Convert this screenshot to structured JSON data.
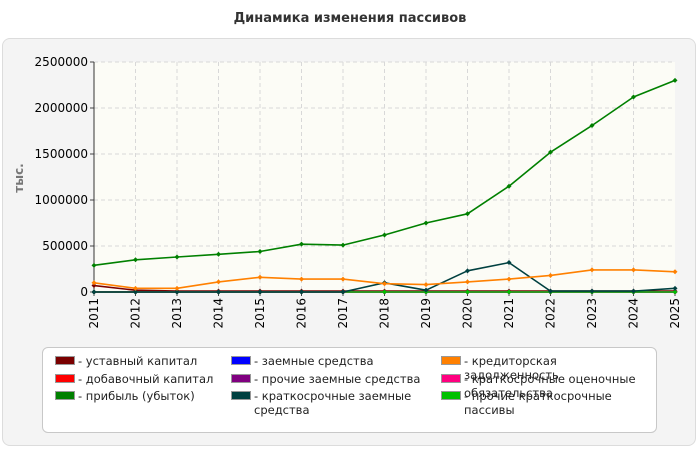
{
  "chart_data": {
    "type": "line",
    "title": "Динамика изменения пассивов",
    "ylabel": "тыс.",
    "ylim": [
      0,
      2500000
    ],
    "yticks": [
      "0",
      "500000",
      "1000000",
      "1500000",
      "2000000",
      "2500000"
    ],
    "x": [
      "2011",
      "2012",
      "2013",
      "2014",
      "2015",
      "2016",
      "2017",
      "2018",
      "2019",
      "2020",
      "2021",
      "2022",
      "2023",
      "2024",
      "2025"
    ],
    "grid": true,
    "legend_position": "bottom",
    "series": [
      {
        "name": "- уставный капитал",
        "color": "#7a0000",
        "values": [
          70000,
          20000,
          10000,
          10000,
          10000,
          10000,
          10000,
          10000,
          10000,
          10000,
          10000,
          10000,
          10000,
          10000,
          10000
        ]
      },
      {
        "name": "- добавочный капитал",
        "color": "#ff0000",
        "values": [
          0,
          0,
          0,
          0,
          0,
          0,
          0,
          0,
          0,
          0,
          0,
          0,
          0,
          0,
          0
        ]
      },
      {
        "name": "- прибыль (убыток)",
        "color": "#008000",
        "values": [
          290000,
          350000,
          380000,
          410000,
          440000,
          520000,
          510000,
          620000,
          750000,
          850000,
          1150000,
          1520000,
          1810000,
          2120000,
          2300000
        ]
      },
      {
        "name": "- заемные средства",
        "color": "#0000ff",
        "values": [
          0,
          0,
          0,
          0,
          0,
          0,
          0,
          0,
          0,
          0,
          0,
          0,
          0,
          0,
          0
        ]
      },
      {
        "name": "- прочие заемные средства",
        "color": "#800080",
        "values": [
          0,
          0,
          0,
          0,
          0,
          0,
          0,
          0,
          0,
          0,
          0,
          0,
          0,
          0,
          0
        ]
      },
      {
        "name": "- краткосрочные заемные средства",
        "color": "#004040",
        "values": [
          0,
          0,
          0,
          0,
          0,
          0,
          0,
          100000,
          20000,
          230000,
          320000,
          10000,
          10000,
          10000,
          40000
        ]
      },
      {
        "name": "- кредиторская задолженность",
        "color": "#ff8000",
        "values": [
          100000,
          40000,
          40000,
          110000,
          160000,
          140000,
          140000,
          90000,
          80000,
          110000,
          140000,
          180000,
          240000,
          240000,
          220000
        ]
      },
      {
        "name": "- краткосрочные оценочные обязательства",
        "color": "#ff0080",
        "values": [
          0,
          0,
          0,
          0,
          0,
          0,
          0,
          0,
          0,
          0,
          0,
          0,
          0,
          0,
          0
        ]
      },
      {
        "name": "- прочие краткосрочные пассивы",
        "color": "#00c000",
        "values": [
          0,
          0,
          0,
          0,
          0,
          0,
          0,
          0,
          0,
          0,
          0,
          0,
          0,
          0,
          0
        ]
      }
    ]
  }
}
